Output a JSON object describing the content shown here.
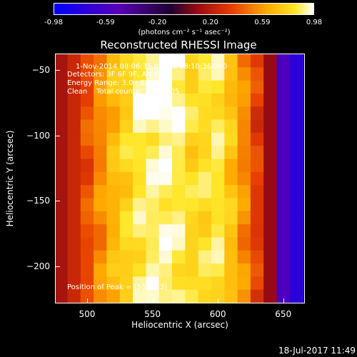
{
  "colorbar": {
    "ticks": [
      "-0.98",
      "-0.59",
      "-0.20",
      "0.20",
      "0.59",
      "0.98"
    ],
    "unit_label": "(photons cm⁻² s⁻¹ asec⁻²)"
  },
  "chart_data": {
    "type": "heatmap",
    "title": "Reconstructed RHESSI Image",
    "xlabel": "Heliocentric X (arcsec)",
    "ylabel": "Heliocentric Y (arcsec)",
    "xlim": [
      476,
      666
    ],
    "ylim": [
      -228,
      -38
    ],
    "x_ticks": [
      "500",
      "550",
      "600",
      "650"
    ],
    "y_ticks": [
      "-50",
      "-100",
      "-150",
      "-200"
    ],
    "color_range": [
      -0.98,
      0.98
    ],
    "annotations": {
      "time": "1-Nov-2014 08:06:35.000 to 08:10:36.000",
      "detectors": "Detectors: 3F 6F 9F, Att 0",
      "energy": "Energy Range: 3.0 - 6.0 keV",
      "clean": "Clean    Total counts: 3.00E+05",
      "peak": "Position of Peak = [559,-43]"
    },
    "columns_x": [
      480,
      490,
      500,
      510,
      520,
      530,
      540,
      550,
      560,
      570,
      580,
      590,
      600,
      610,
      620,
      630,
      640,
      650,
      660
    ],
    "column_profile": [
      0.15,
      0.25,
      0.4,
      0.55,
      0.68,
      0.78,
      0.86,
      0.9,
      0.92,
      0.88,
      0.8,
      0.82,
      0.86,
      0.72,
      0.55,
      0.35,
      0.1,
      -0.55,
      -0.75
    ]
  },
  "footer": {
    "timestamp": "18-Jul-2017 11:49"
  }
}
